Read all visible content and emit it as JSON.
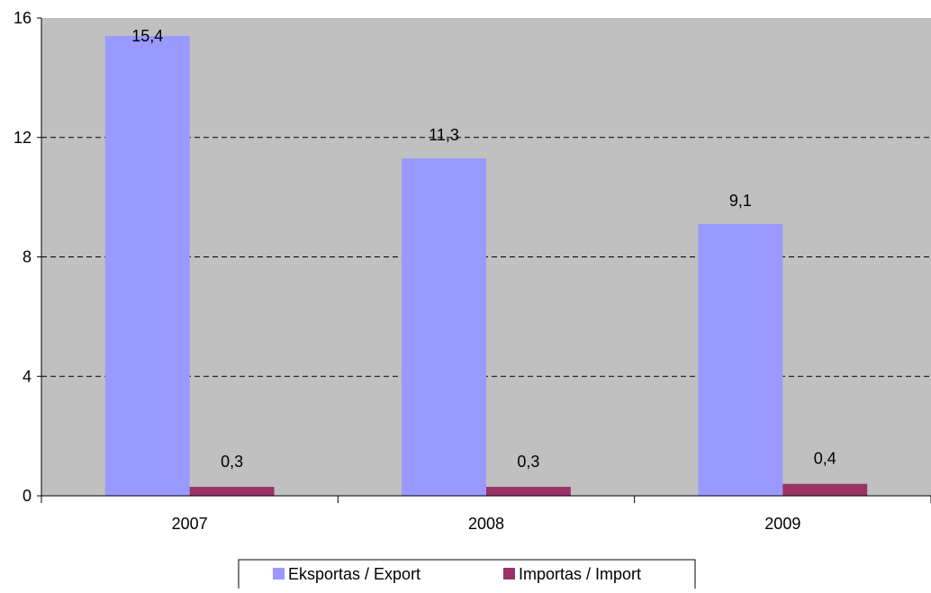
{
  "chart_data": {
    "type": "bar",
    "categories": [
      "2007",
      "2008",
      "2009"
    ],
    "series": [
      {
        "name": "Eksportas / Export",
        "values": [
          15.4,
          11.3,
          9.1
        ],
        "labels": [
          "15,4",
          "11,3",
          "9,1"
        ],
        "color": "#9999ff"
      },
      {
        "name": "Importas / Import",
        "values": [
          0.3,
          0.3,
          0.4
        ],
        "labels": [
          "0,3",
          "0,3",
          "0,4"
        ],
        "color": "#993366"
      }
    ],
    "yticks": [
      "0",
      "4",
      "8",
      "12",
      "16"
    ],
    "ylim": [
      0,
      16
    ],
    "grid": true,
    "legend_position": "bottom",
    "plot_background": "#c0c0c0"
  }
}
